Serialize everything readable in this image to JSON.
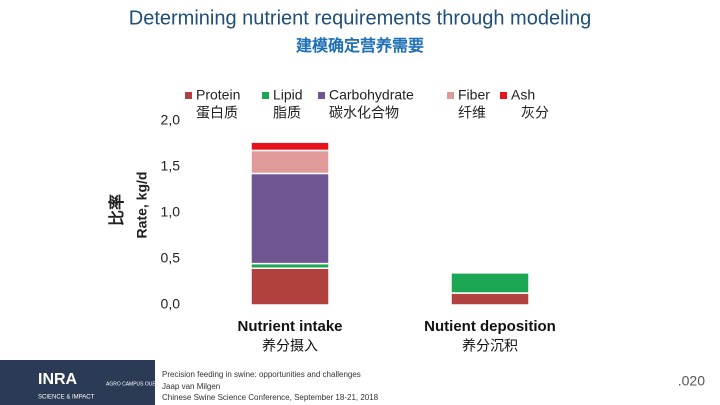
{
  "chart_data": {
    "type": "stacked_bar",
    "title": "Determining nutrient requirements through modeling",
    "subtitle": "建模确定营养需要",
    "y_label": "Rate, kg/d",
    "y_label_cn": "比率",
    "categories": [
      "Nutrient intake",
      "Nutient deposition"
    ],
    "categories_cn": [
      "养分摄入",
      "养分沉积"
    ],
    "series": [
      {
        "name": "Protein",
        "name_cn": "蛋白质",
        "color": "#b0413e",
        "values": [
          0.4,
          0.13
        ]
      },
      {
        "name": "Lipid",
        "name_cn": "脂质",
        "color": "#1aa653",
        "values": [
          0.05,
          0.22
        ]
      },
      {
        "name": "Carbohydrate",
        "name_cn": "碳水化合物",
        "color": "#6f5592",
        "values": [
          0.98,
          0.01
        ]
      },
      {
        "name": "Fiber",
        "name_cn": "纤维",
        "color": "#e09a99",
        "values": [
          0.25,
          0
        ]
      },
      {
        "name": "Ash",
        "name_cn": "灰分",
        "color": "#e8141c",
        "values": [
          0.09,
          0
        ]
      }
    ],
    "ylim": [
      0,
      2.0
    ],
    "yticks": [
      {
        "value": 0,
        "label": "0,0"
      },
      {
        "value": 0.5,
        "label": "0,5"
      },
      {
        "value": 1.0,
        "label": "1,0"
      },
      {
        "value": 1.5,
        "label": "1,5"
      },
      {
        "value": 2.0,
        "label": "2,0"
      }
    ],
    "legend": "top"
  },
  "footer": {
    "lines": [
      "Precision feeding in swine: opportunities and challenges",
      "Jaap van Milgen",
      "Chinese Swine Science Conference, September 18-21, 2018"
    ],
    "page": ".020",
    "logo": "INRA",
    "logo_sub": "SCIENCE & IMPACT",
    "logo2": "AGRO CAMPUS OUEST"
  }
}
